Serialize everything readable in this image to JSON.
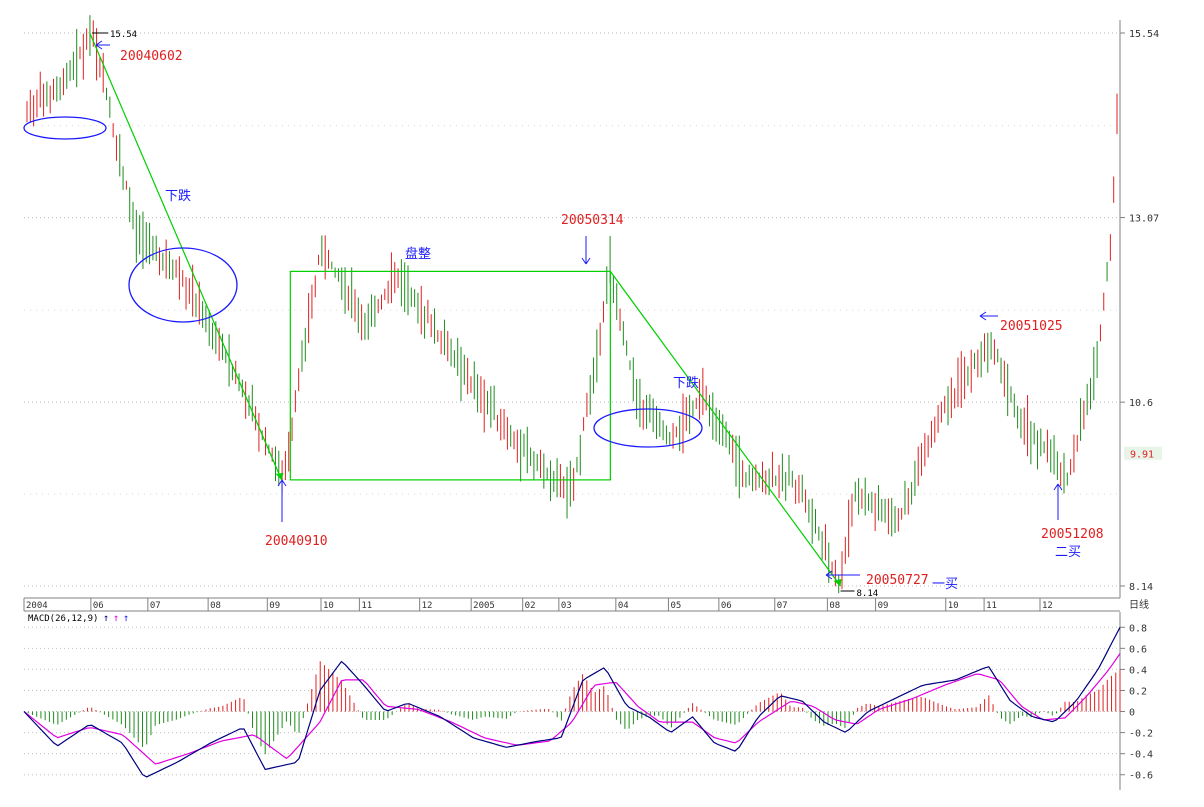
{
  "chart_data": [
    {
      "type": "candlestick",
      "period_label": "日线",
      "ylim": [
        8.14,
        15.54
      ],
      "price_ticks": [
        15.54,
        13.07,
        10.6,
        8.14
      ],
      "current_price": 9.91,
      "x_ticks": [
        "2004",
        "06",
        "07",
        "08",
        "09",
        "10",
        "11",
        "12",
        "2005",
        "02",
        "03",
        "04",
        "05",
        "06",
        "07",
        "08",
        "09",
        "10",
        "11",
        "12"
      ],
      "high_marker": "15.54",
      "low_marker": "8.14",
      "path_points": [
        {
          "date": "20040602",
          "price": 15.54
        },
        {
          "date": "20040910",
          "price": 9.56
        },
        {
          "date": "20050314",
          "price": 12.35
        },
        {
          "date": "20050727",
          "price": 8.14
        },
        {
          "date": "20051025",
          "price": 11.44
        },
        {
          "date": "20051208",
          "price": 9.58
        },
        {
          "date": "end",
          "price": 14.5
        }
      ],
      "consolidation_box": {
        "top": 12.35,
        "bottom": 9.56,
        "from": "20040910",
        "to": "20050314"
      },
      "annotations": [
        {
          "id": "d1",
          "text": "20040602",
          "color": "#e02020"
        },
        {
          "id": "fall1",
          "text": "下跌",
          "color": "#1a1aff"
        },
        {
          "id": "consol",
          "text": "盘整",
          "color": "#1a1aff"
        },
        {
          "id": "d2",
          "text": "20040910",
          "color": "#e02020"
        },
        {
          "id": "d3",
          "text": "20050314",
          "color": "#e02020"
        },
        {
          "id": "fall2",
          "text": "下跌",
          "color": "#1a1aff"
        },
        {
          "id": "d4",
          "text": "20050727",
          "color": "#e02020"
        },
        {
          "id": "buy1",
          "text": "一买",
          "color": "#1a1aff"
        },
        {
          "id": "d5",
          "text": "20051025",
          "color": "#e02020"
        },
        {
          "id": "d6",
          "text": "20051208",
          "color": "#e02020"
        },
        {
          "id": "buy2",
          "text": "二买",
          "color": "#1a1aff"
        }
      ],
      "colors": {
        "up": "#e02020",
        "down": "#1e8c1e",
        "trend": "#00d000",
        "ellipse": "#1a1aff",
        "arrow": "#1a1aff",
        "price_tag": "#e02020"
      }
    },
    {
      "type": "macd",
      "title": "MACD(26,12,9)",
      "legend_glyphs": [
        "↑",
        "↑",
        "↑"
      ],
      "legend_colors": [
        "#000080",
        "#e000e0",
        "#1a1aff"
      ],
      "ylim": [
        -0.65,
        0.85
      ],
      "ticks": [
        0.8,
        0.6,
        0.4,
        0.2,
        0.0,
        -0.2,
        -0.4,
        -0.6
      ],
      "dif_keypoints": [
        [
          0,
          0.0
        ],
        [
          0.03,
          -0.33
        ],
        [
          0.06,
          -0.12
        ],
        [
          0.09,
          -0.3
        ],
        [
          0.11,
          -0.63
        ],
        [
          0.14,
          -0.48
        ],
        [
          0.17,
          -0.3
        ],
        [
          0.2,
          -0.15
        ],
        [
          0.22,
          -0.55
        ],
        [
          0.25,
          -0.48
        ],
        [
          0.27,
          0.2
        ],
        [
          0.29,
          0.48
        ],
        [
          0.31,
          0.25
        ],
        [
          0.33,
          0.0
        ],
        [
          0.35,
          0.08
        ],
        [
          0.38,
          -0.05
        ],
        [
          0.41,
          -0.25
        ],
        [
          0.44,
          -0.34
        ],
        [
          0.47,
          -0.28
        ],
        [
          0.49,
          -0.25
        ],
        [
          0.51,
          0.3
        ],
        [
          0.53,
          0.42
        ],
        [
          0.55,
          0.05
        ],
        [
          0.57,
          -0.05
        ],
        [
          0.59,
          -0.2
        ],
        [
          0.61,
          -0.05
        ],
        [
          0.63,
          -0.3
        ],
        [
          0.65,
          -0.38
        ],
        [
          0.67,
          -0.05
        ],
        [
          0.69,
          0.15
        ],
        [
          0.71,
          0.1
        ],
        [
          0.73,
          -0.1
        ],
        [
          0.75,
          -0.2
        ],
        [
          0.77,
          0.0
        ],
        [
          0.8,
          0.15
        ],
        [
          0.82,
          0.25
        ],
        [
          0.85,
          0.3
        ],
        [
          0.88,
          0.43
        ],
        [
          0.9,
          0.1
        ],
        [
          0.92,
          -0.05
        ],
        [
          0.94,
          -0.1
        ],
        [
          0.96,
          0.1
        ],
        [
          0.98,
          0.4
        ],
        [
          1.0,
          0.8
        ]
      ],
      "dea_keypoints": [
        [
          0,
          0.0
        ],
        [
          0.03,
          -0.25
        ],
        [
          0.06,
          -0.15
        ],
        [
          0.09,
          -0.22
        ],
        [
          0.12,
          -0.5
        ],
        [
          0.15,
          -0.4
        ],
        [
          0.18,
          -0.28
        ],
        [
          0.21,
          -0.22
        ],
        [
          0.24,
          -0.45
        ],
        [
          0.27,
          -0.1
        ],
        [
          0.29,
          0.3
        ],
        [
          0.31,
          0.3
        ],
        [
          0.33,
          0.05
        ],
        [
          0.36,
          0.02
        ],
        [
          0.39,
          -0.1
        ],
        [
          0.42,
          -0.25
        ],
        [
          0.45,
          -0.32
        ],
        [
          0.48,
          -0.28
        ],
        [
          0.5,
          -0.1
        ],
        [
          0.52,
          0.25
        ],
        [
          0.54,
          0.28
        ],
        [
          0.56,
          0.05
        ],
        [
          0.58,
          -0.1
        ],
        [
          0.61,
          -0.1
        ],
        [
          0.63,
          -0.25
        ],
        [
          0.65,
          -0.3
        ],
        [
          0.67,
          -0.1
        ],
        [
          0.7,
          0.1
        ],
        [
          0.72,
          0.05
        ],
        [
          0.74,
          -0.08
        ],
        [
          0.76,
          -0.12
        ],
        [
          0.78,
          0.02
        ],
        [
          0.81,
          0.12
        ],
        [
          0.84,
          0.25
        ],
        [
          0.87,
          0.36
        ],
        [
          0.89,
          0.3
        ],
        [
          0.91,
          0.05
        ],
        [
          0.93,
          -0.08
        ],
        [
          0.95,
          -0.06
        ],
        [
          0.97,
          0.15
        ],
        [
          0.99,
          0.4
        ],
        [
          1.0,
          0.55
        ]
      ]
    }
  ]
}
